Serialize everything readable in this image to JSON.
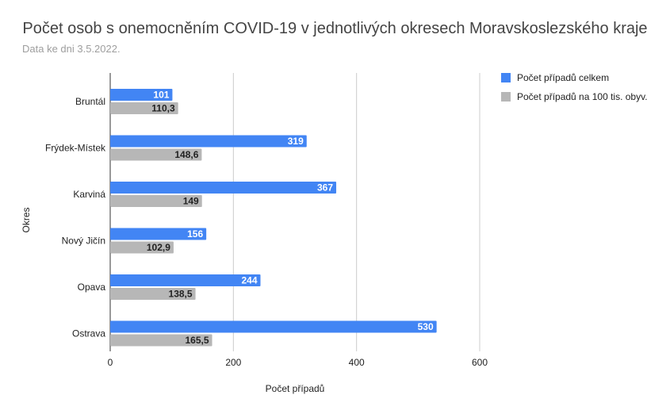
{
  "title": "Počet osob s onemocněním COVID-19 v jednotlivých okresech Moravskoslezského kraje",
  "subtitle": "Data ke dni 3.5.2022.",
  "chart_data": {
    "type": "bar",
    "orientation": "horizontal",
    "categories": [
      "Bruntál",
      "Frýdek-Místek",
      "Karviná",
      "Nový Jičín",
      "Opava",
      "Ostrava"
    ],
    "series": [
      {
        "name": "Počet případů celkem",
        "values": [
          101,
          319,
          367,
          156,
          244,
          530
        ],
        "labels": [
          "101",
          "319",
          "367",
          "156",
          "244",
          "530"
        ],
        "color": "#4285f4"
      },
      {
        "name": "Počet případů na 100 tis. obyv.",
        "values": [
          110.3,
          148.6,
          149,
          102.9,
          138.5,
          165.5
        ],
        "labels": [
          "110,3",
          "148,6",
          "149",
          "102,9",
          "138,5",
          "165,5"
        ],
        "color": "#b7b7b7"
      }
    ],
    "xlabel": "Počet případů",
    "ylabel": "Okres",
    "xlim": [
      0,
      600
    ],
    "xticks": [
      "0",
      "200",
      "400",
      "600"
    ],
    "grid": true,
    "legend_position": "right"
  }
}
